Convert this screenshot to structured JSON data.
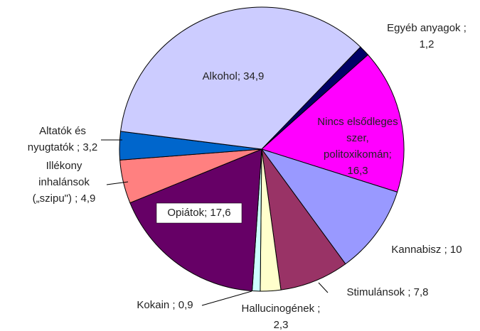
{
  "chart_data": {
    "type": "pie",
    "values": [
      1.2,
      16.3,
      10,
      7.8,
      2.3,
      0.9,
      17.6,
      4.9,
      3.2,
      34.9
    ],
    "value_labels": [
      [
        "Egyéb anyagok ;",
        "1,2"
      ],
      [
        "Nincs elsődleges",
        "szer,",
        "politoxikomán;",
        "16,3"
      ],
      [
        "Kannabisz ; 10"
      ],
      [
        "Stimulánsok ; 7,8"
      ],
      [
        "Hallucinogének ;",
        "2,3"
      ],
      [
        "Kokain ; 0,9"
      ],
      [
        "Opiátok; 17,6"
      ],
      [
        "Illékony",
        "inhalánsok",
        "(„szipu\") ; 4,9"
      ],
      [
        "Altatók és",
        "nyugtatók ; 3,2"
      ],
      [
        "Alkohol; 34,9"
      ]
    ],
    "colors": [
      "#000066",
      "#ff00ff",
      "#9999ff",
      "#993366",
      "#ffffcc",
      "#ccffff",
      "#660066",
      "#ff8080",
      "#0066cc",
      "#ccccff"
    ]
  }
}
